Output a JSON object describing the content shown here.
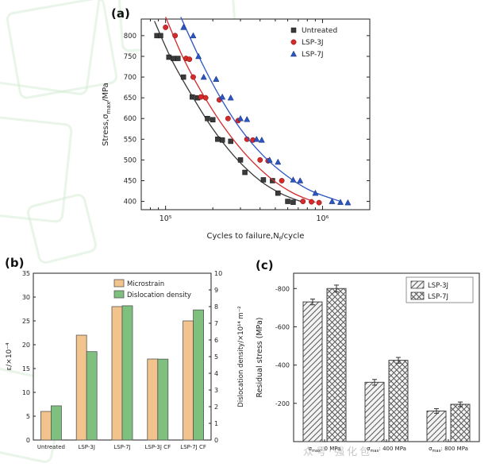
{
  "panels": {
    "a": {
      "label": "(a)"
    },
    "b": {
      "label": "(b)"
    },
    "c": {
      "label": "(c)"
    }
  },
  "watermark": "众号·强化包",
  "colors": {
    "untreated": "#3a3a3a",
    "lsp3j": "#d42a2a",
    "lsp7j": "#2a55c4",
    "microstrain": "#f2c38d",
    "dislocation": "#7fc07f",
    "axis": "#222222",
    "watermark_green": "#d6ecd6"
  },
  "chart_data": [
    {
      "id": "sn-curve",
      "type": "scatter",
      "xlabel": "Cycles to failure,N~f~/cycle",
      "ylabel": "Stress,σ~max~/MPa",
      "x_scale": "log",
      "xlim": [
        70000,
        2000000
      ],
      "ylim": [
        380,
        840
      ],
      "yticks": [
        400,
        450,
        500,
        550,
        600,
        650,
        700,
        750,
        800
      ],
      "xticks": [
        100000,
        1000000
      ],
      "xtick_labels": [
        "10⁵",
        "10⁶"
      ],
      "legend_position": "top-right",
      "grid": false,
      "series": [
        {
          "name": "Untreated",
          "marker": "square",
          "color": "#3a3a3a",
          "points": [
            [
              88000,
              800
            ],
            [
              93000,
              800
            ],
            [
              105000,
              748
            ],
            [
              112000,
              745
            ],
            [
              120000,
              745
            ],
            [
              130000,
              700
            ],
            [
              148000,
              652
            ],
            [
              160000,
              650
            ],
            [
              185000,
              600
            ],
            [
              200000,
              597
            ],
            [
              215000,
              550
            ],
            [
              230000,
              548
            ],
            [
              260000,
              545
            ],
            [
              300000,
              500
            ],
            [
              320000,
              470
            ],
            [
              420000,
              452
            ],
            [
              480000,
              450
            ],
            [
              520000,
              420
            ],
            [
              600000,
              400
            ],
            [
              650000,
              398
            ]
          ],
          "curve": [
            [
              85000,
              835
            ],
            [
              110000,
              740
            ],
            [
              150000,
              650
            ],
            [
              200000,
              575
            ],
            [
              280000,
              505
            ],
            [
              400000,
              450
            ],
            [
              550000,
              418
            ],
            [
              750000,
              398
            ]
          ]
        },
        {
          "name": "LSP-3J",
          "marker": "circle",
          "color": "#d42a2a",
          "points": [
            [
              100000,
              820
            ],
            [
              115000,
              800
            ],
            [
              135000,
              745
            ],
            [
              142000,
              743
            ],
            [
              150000,
              700
            ],
            [
              168000,
              652
            ],
            [
              180000,
              650
            ],
            [
              220000,
              645
            ],
            [
              250000,
              600
            ],
            [
              290000,
              595
            ],
            [
              330000,
              550
            ],
            [
              360000,
              548
            ],
            [
              400000,
              500
            ],
            [
              450000,
              498
            ],
            [
              550000,
              450
            ],
            [
              750000,
              400
            ],
            [
              850000,
              399
            ],
            [
              950000,
              397
            ]
          ],
          "curve": [
            [
              100000,
              845
            ],
            [
              130000,
              745
            ],
            [
              175000,
              655
            ],
            [
              240000,
              575
            ],
            [
              330000,
              510
            ],
            [
              470000,
              455
            ],
            [
              650000,
              420
            ],
            [
              900000,
              398
            ]
          ]
        },
        {
          "name": "LSP-7J",
          "marker": "triangle",
          "color": "#2a55c4",
          "points": [
            [
              130000,
              820
            ],
            [
              150000,
              800
            ],
            [
              162000,
              750
            ],
            [
              175000,
              700
            ],
            [
              210000,
              695
            ],
            [
              230000,
              652
            ],
            [
              260000,
              650
            ],
            [
              300000,
              600
            ],
            [
              330000,
              598
            ],
            [
              380000,
              550
            ],
            [
              410000,
              548
            ],
            [
              460000,
              500
            ],
            [
              520000,
              495
            ],
            [
              650000,
              452
            ],
            [
              720000,
              450
            ],
            [
              900000,
              420
            ],
            [
              1150000,
              400
            ],
            [
              1300000,
              398
            ],
            [
              1450000,
              397
            ]
          ],
          "curve": [
            [
              125000,
              845
            ],
            [
              165000,
              745
            ],
            [
              220000,
              655
            ],
            [
              300000,
              575
            ],
            [
              420000,
              510
            ],
            [
              600000,
              460
            ],
            [
              850000,
              425
            ],
            [
              1300000,
              400
            ]
          ]
        }
      ]
    },
    {
      "id": "microstrain-dislocation",
      "type": "bar",
      "categories": [
        "Untreated",
        "LSP-3J",
        "LSP-7J",
        "LSP-3J CF",
        "LSP-7J CF"
      ],
      "series": [
        {
          "name": "Microstrain",
          "axis": "left",
          "color": "#f2c38d",
          "values": [
            6,
            22,
            28,
            17,
            25
          ]
        },
        {
          "name": "Dislocation density",
          "axis": "right",
          "color": "#7fc07f",
          "values": [
            2.05,
            5.3,
            8.05,
            4.85,
            7.8
          ]
        }
      ],
      "ylabel_left": "ε/×10⁻⁴",
      "ylabel_right": "Dislocation density/×10¹⁴ m⁻²",
      "ylim_left": [
        0,
        35
      ],
      "yticks_left": [
        0,
        5,
        10,
        15,
        20,
        25,
        30,
        35
      ],
      "ylim_right": [
        0,
        10
      ],
      "yticks_right": [
        0,
        1,
        2,
        3,
        4,
        5,
        6,
        7,
        8,
        9,
        10
      ],
      "legend_position": "top-right",
      "grid": false
    },
    {
      "id": "residual-stress",
      "type": "bar",
      "categories": [
        "σ~max~: 0 MPa",
        "σ~max~: 400 MPa",
        "σ~max~: 800 MPa"
      ],
      "series": [
        {
          "name": "LSP-3J",
          "pattern": "diagonal",
          "values": [
            -730,
            -310,
            -160
          ],
          "errors": [
            15,
            15,
            12
          ]
        },
        {
          "name": "LSP-7J",
          "pattern": "cross",
          "values": [
            -800,
            -425,
            -195
          ],
          "errors": [
            18,
            15,
            12
          ]
        }
      ],
      "ylabel": "Residual stress (MPa)",
      "ylim": [
        0,
        -880
      ],
      "yticks": [
        -200,
        -400,
        -600,
        -800
      ],
      "legend_position": "top-right",
      "grid": false
    }
  ]
}
